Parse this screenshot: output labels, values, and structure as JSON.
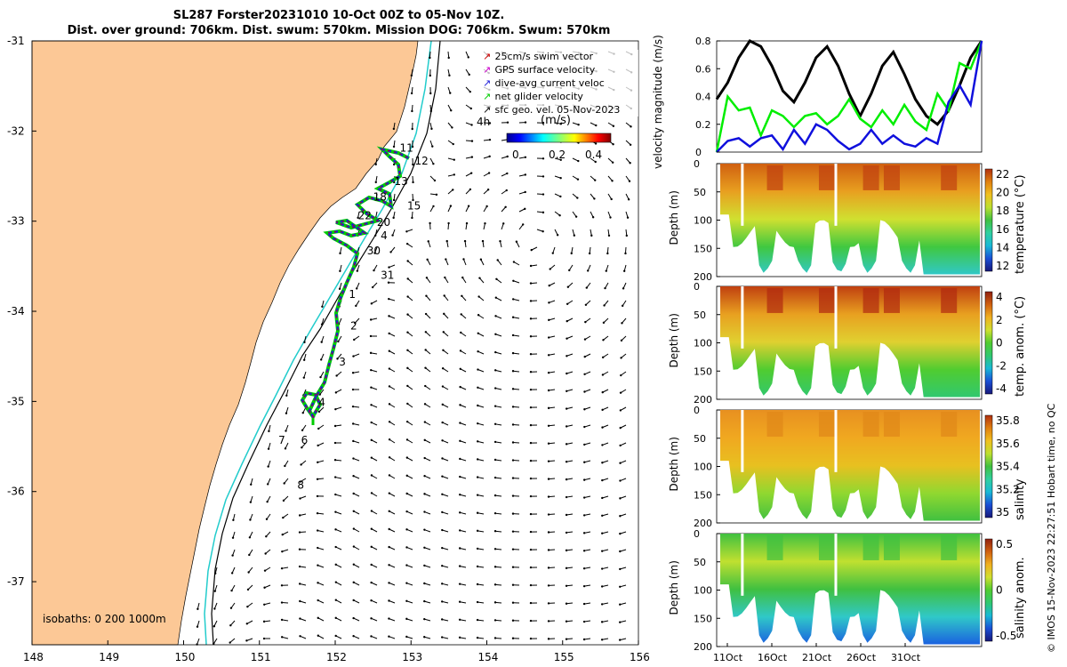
{
  "title_line1": "SL287 Forster20231010 10-Oct 00Z to 05-Nov 10Z.",
  "title_line2": "Dist. over ground: 706km. Dist. swum: 570km. Mission DOG: 706km. Swum: 570km",
  "credit": "© IMOS 15-Nov-2023 22:27:51 Hobart time, no QC",
  "colors": {
    "land": "#fcc896",
    "shelf_isobath": "#22cccc",
    "deep_isobath": "#000000",
    "track_swim": "#cc0000",
    "track_gps": "#cc00cc",
    "track_dive": "#1d1dd8",
    "track_net": "#00cc00"
  },
  "chart_data": [
    {
      "name": "map",
      "type": "scatter",
      "xticks": [
        "148",
        "149",
        "150",
        "151",
        "152",
        "153",
        "154",
        "155",
        "156"
      ],
      "yticks": [
        "-31",
        "-32",
        "-33",
        "-34",
        "-35",
        "-36",
        "-37"
      ],
      "xlim": [
        148,
        156
      ],
      "ylim": [
        -37.7,
        -31
      ],
      "legend": [
        {
          "label": "25cm/s swim vector",
          "color": "#cc0000"
        },
        {
          "label": "GPS surface velocity",
          "color": "#cc00cc"
        },
        {
          "label": "dive-avg current veloc",
          "color": "#1d1dd8"
        },
        {
          "label": "net glider velocity",
          "color": "#00cc00"
        },
        {
          "label": "sfc geo. vel. 05-Nov-2023",
          "color": "#000000"
        }
      ],
      "legend_extra": "4h",
      "colorbar_label": "(m/s)",
      "colorbar_ticks": [
        "0",
        "0.2",
        "0.4"
      ],
      "isobaths_label": "isobaths: 0   200  1000m",
      "track_labels": [
        {
          "t": "11",
          "lon": 152.85,
          "lat": -32.23
        },
        {
          "t": "12",
          "lon": 153.05,
          "lat": -32.37
        },
        {
          "t": "13",
          "lon": 152.78,
          "lat": -32.6
        },
        {
          "t": "18",
          "lon": 152.5,
          "lat": -32.77
        },
        {
          "t": "15",
          "lon": 152.95,
          "lat": -32.87
        },
        {
          "t": "22",
          "lon": 152.3,
          "lat": -32.98
        },
        {
          "t": "20",
          "lon": 152.55,
          "lat": -33.05
        },
        {
          "t": "4",
          "lon": 152.6,
          "lat": -33.2
        },
        {
          "t": "30",
          "lon": 152.42,
          "lat": -33.37
        },
        {
          "t": "31",
          "lon": 152.6,
          "lat": -33.64
        },
        {
          "t": "1",
          "lon": 152.18,
          "lat": -33.85
        },
        {
          "t": "2",
          "lon": 152.2,
          "lat": -34.2
        },
        {
          "t": "3",
          "lon": 152.05,
          "lat": -34.6
        },
        {
          "t": "4",
          "lon": 151.78,
          "lat": -35.05
        },
        {
          "t": "7",
          "lon": 151.25,
          "lat": -35.47
        },
        {
          "t": "6",
          "lon": 151.55,
          "lat": -35.47
        },
        {
          "t": "8",
          "lon": 151.5,
          "lat": -35.97
        }
      ]
    },
    {
      "name": "velocity",
      "type": "line",
      "ylabel": "velocity magnitude (m/s)",
      "ylim": [
        0,
        0.8
      ],
      "yticks": [
        "0",
        "0.2",
        "0.4",
        "0.6",
        "0.8"
      ],
      "series": [
        {
          "color": "#000000",
          "values": [
            0.38,
            0.5,
            0.68,
            0.8,
            0.76,
            0.62,
            0.44,
            0.36,
            0.5,
            0.68,
            0.76,
            0.62,
            0.42,
            0.26,
            0.42,
            0.62,
            0.72,
            0.56,
            0.38,
            0.26,
            0.2,
            0.3,
            0.48,
            0.68,
            0.8
          ]
        },
        {
          "color": "#00ee00",
          "values": [
            0.0,
            0.4,
            0.3,
            0.32,
            0.12,
            0.3,
            0.26,
            0.18,
            0.26,
            0.28,
            0.2,
            0.26,
            0.38,
            0.24,
            0.18,
            0.3,
            0.2,
            0.34,
            0.22,
            0.16,
            0.42,
            0.3,
            0.64,
            0.6,
            0.8
          ]
        },
        {
          "color": "#1010dd",
          "values": [
            0.0,
            0.08,
            0.1,
            0.04,
            0.1,
            0.12,
            0.02,
            0.16,
            0.06,
            0.2,
            0.16,
            0.08,
            0.02,
            0.06,
            0.16,
            0.06,
            0.12,
            0.06,
            0.04,
            0.1,
            0.06,
            0.36,
            0.48,
            0.34,
            0.8
          ]
        }
      ]
    },
    {
      "name": "temperature",
      "type": "heatmap",
      "ylabel": "Depth (m)",
      "cbar_label": "temperature (°C)",
      "cbar_ticks": [
        "22",
        "20",
        "18",
        "16",
        "14",
        "12"
      ],
      "vmin": 11,
      "vmax": 23,
      "ylim": [
        200,
        0
      ],
      "yticks": [
        "0",
        "50",
        "100",
        "150",
        "200"
      ]
    },
    {
      "name": "temp_anomaly",
      "type": "heatmap",
      "ylabel": "Depth (m)",
      "cbar_label": "temp. anom. (°C)",
      "cbar_ticks": [
        "4",
        "2",
        "0",
        "-2",
        "-4"
      ],
      "vmin": -4,
      "vmax": 4,
      "ylim": [
        200,
        0
      ],
      "yticks": [
        "0",
        "50",
        "100",
        "150",
        "200"
      ]
    },
    {
      "name": "salinity",
      "type": "heatmap",
      "ylabel": "Depth (m)",
      "cbar_label": "salinity",
      "cbar_ticks": [
        "35.8",
        "35.6",
        "35.4",
        "35.2",
        "35"
      ],
      "vmin": 34.85,
      "vmax": 35.85,
      "ylim": [
        200,
        0
      ],
      "yticks": [
        "0",
        "50",
        "100",
        "150",
        "200"
      ]
    },
    {
      "name": "salinity_anomaly",
      "type": "heatmap",
      "ylabel": "Depth (m)",
      "cbar_label": "salinity anom.",
      "cbar_ticks": [
        "0.5",
        "0",
        "-0.5"
      ],
      "vmin": -0.5,
      "vmax": 0.5,
      "ylim": [
        200,
        0
      ],
      "yticks": [
        "0",
        "50",
        "100",
        "150",
        "200"
      ],
      "xticks": [
        "11Oct",
        "16Oct",
        "21Oct",
        "26Oct",
        "31Oct"
      ]
    }
  ]
}
